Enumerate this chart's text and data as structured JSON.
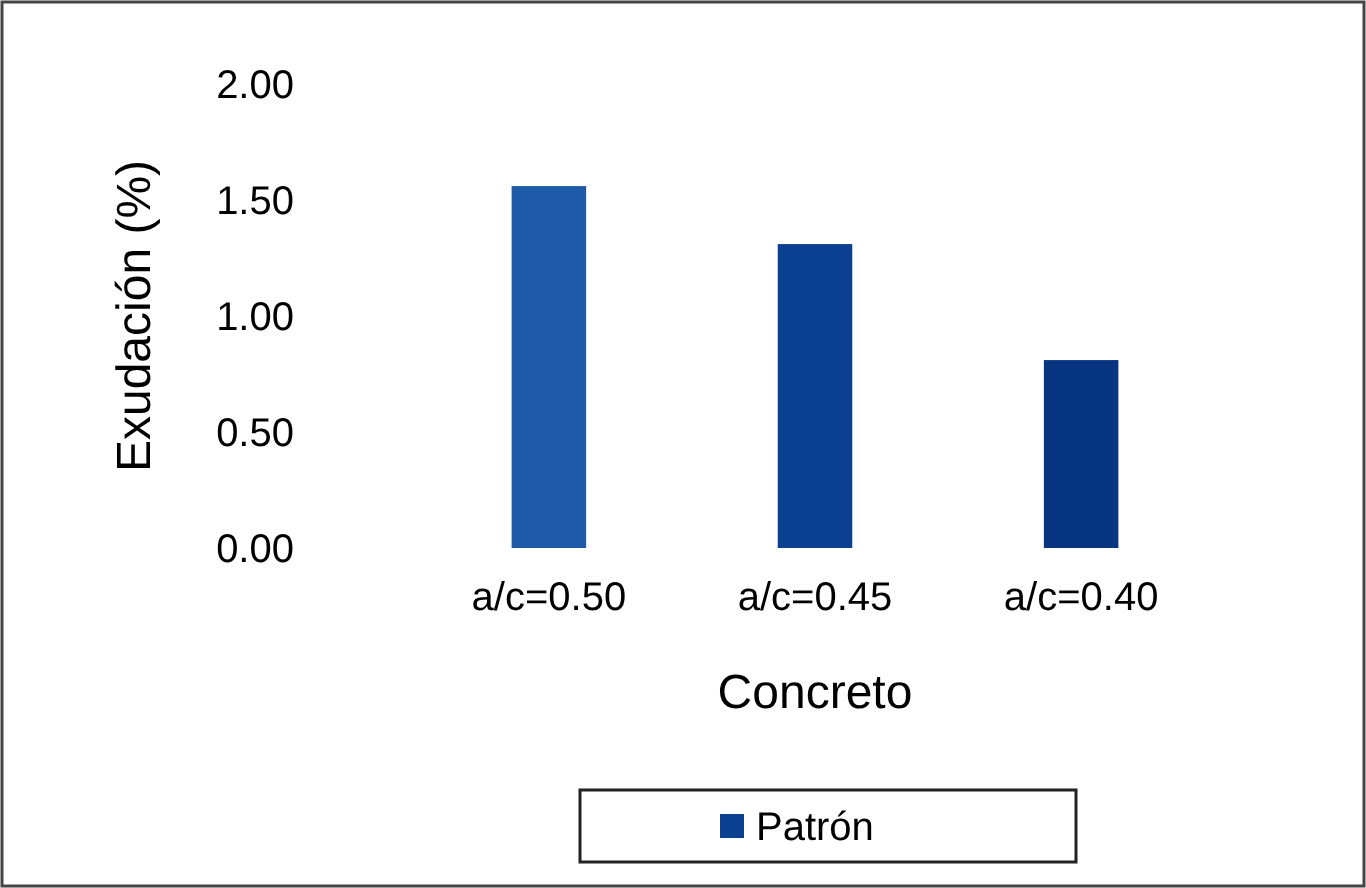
{
  "chart_data": {
    "type": "bar",
    "xlabel": "Concreto",
    "ylabel": "Exudación (%)",
    "categories": [
      "a/c=0.50",
      "a/c=0.45",
      "a/c=0.40"
    ],
    "series": [
      {
        "name": "Patrón",
        "color": "#0b3f8f",
        "colors": [
          "#1f5aa8",
          "#0a3f91",
          "#083580"
        ],
        "values": [
          1.56,
          1.31,
          0.81
        ]
      }
    ],
    "ylim": [
      0,
      2
    ],
    "yticks": [
      {
        "value": 0,
        "label": "0.00"
      },
      {
        "value": 0.5,
        "label": "0.50"
      },
      {
        "value": 1,
        "label": "1.00"
      },
      {
        "value": 1.5,
        "label": "1.50"
      },
      {
        "value": 2,
        "label": "2.00"
      }
    ],
    "grid": false,
    "legend": "bottom"
  }
}
